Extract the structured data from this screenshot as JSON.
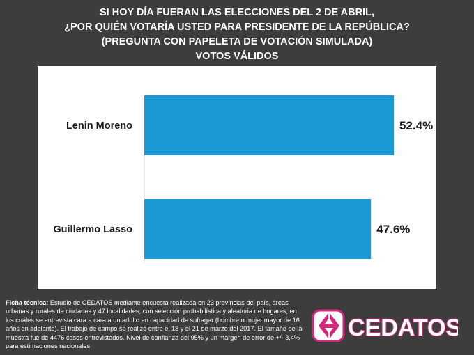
{
  "title": {
    "line1": "SI HOY DÍA FUERAN LAS ELECCIONES DEL 2 DE ABRIL,",
    "line2": "¿POR QUIÉN VOTARÍA USTED PARA PRESIDENTE DE LA REPÚBLICA?",
    "line3": "(PREGUNTA CON PAPELETA DE VOTACIÓN SIMULADA)",
    "line4": "VOTOS VÁLIDOS"
  },
  "chart_data": {
    "type": "bar",
    "orientation": "horizontal",
    "categories": [
      "Lenin Moreno",
      "Guillermo Lasso"
    ],
    "values": [
      52.4,
      47.6
    ],
    "value_labels": [
      "52.4%",
      "47.6%"
    ],
    "xlim": [
      0,
      60
    ],
    "grid": false,
    "legend": "none",
    "bar_color": "#1b9ad6"
  },
  "footnote": {
    "label": "Ficha técnica:",
    "text": " Estudio de CEDATOS mediante encuesta realizada en 23 provincias del país, áreas urbanas y rurales de ciudades y 47 localidades, con selección probabilística y aleatoria de hogares, en los cuáles se entrevista cara a cara a un adulto en capacidad de sufragar (hombre o mujer mayor de 16 años en adelante). El trabajo de campo se realizó entre el 18 y el 21 de marzo del 2017. El tamaño de la muestra fue de 4476 casos entrevistados. Nivel de confianza del 95% y un margen de error de +/- 3,4% para estimaciones nacionales"
  },
  "logo": {
    "text": "CEDATOS",
    "icon": "cedatos-logo-icon",
    "color": "#d1287a"
  },
  "colors": {
    "background": "#3d3d3d",
    "panel": "#ffffff",
    "bar": "#1b9ad6"
  }
}
